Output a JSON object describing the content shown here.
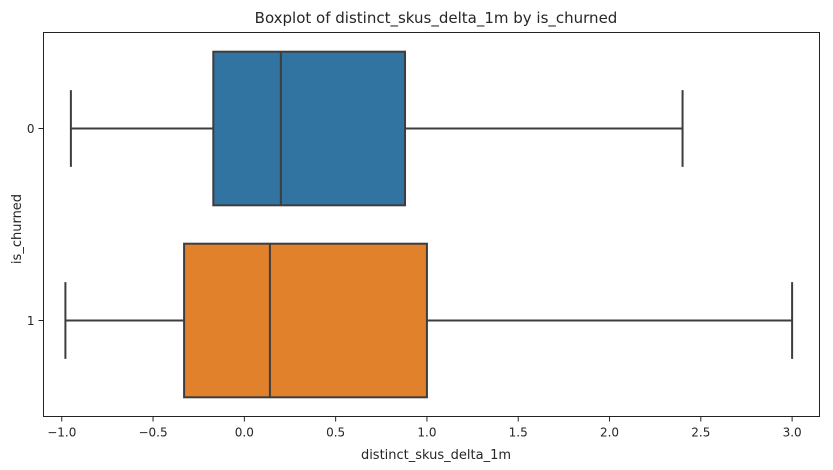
{
  "chart_data": {
    "type": "boxplot",
    "orientation": "horizontal",
    "title": "Boxplot of distinct_skus_delta_1m by is_churned",
    "xlabel": "distinct_skus_delta_1m",
    "ylabel": "is_churned",
    "xlim": [
      -1.1,
      3.15
    ],
    "x_ticks": [
      -1.0,
      -0.5,
      0.0,
      0.5,
      1.0,
      1.5,
      2.0,
      2.5,
      3.0
    ],
    "x_tick_labels": [
      "−1.0",
      "−0.5",
      "0.0",
      "0.5",
      "1.0",
      "1.5",
      "2.0",
      "2.5",
      "3.0"
    ],
    "categories": [
      "0",
      "1"
    ],
    "grid": false,
    "legend": "none",
    "boxes": [
      {
        "category": "0",
        "whisker_low": -0.95,
        "q1": -0.17,
        "median": 0.2,
        "q3": 0.88,
        "whisker_high": 2.4,
        "color": "#3274a1"
      },
      {
        "category": "1",
        "whisker_low": -0.98,
        "q1": -0.33,
        "median": 0.14,
        "q3": 1.0,
        "whisker_high": 3.0,
        "color": "#e1812c"
      }
    ],
    "line_color": "#3d3d3d"
  }
}
